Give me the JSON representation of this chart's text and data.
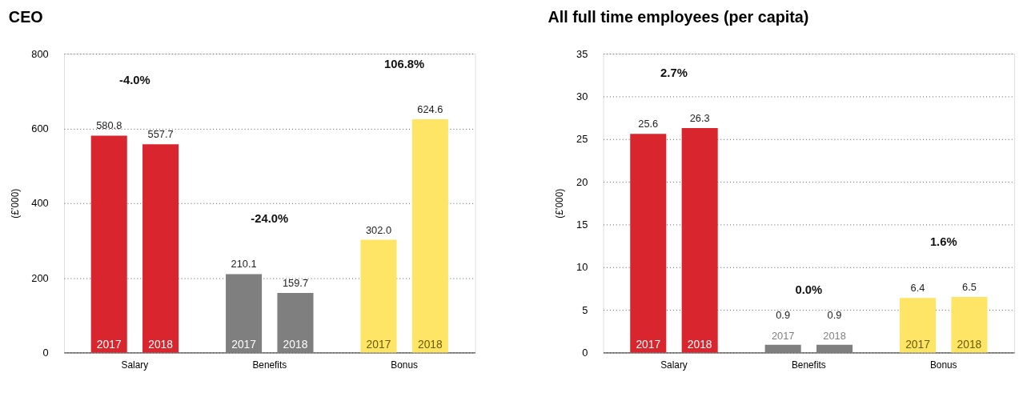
{
  "chart_data": [
    {
      "type": "bar",
      "title": "CEO",
      "ylabel": "(£’000)",
      "categories": [
        "Salary",
        "Benefits",
        "Bonus"
      ],
      "series": [
        {
          "name": "2017",
          "colors": [
            "#d9262e",
            "#7f7f7f",
            "#ffe566"
          ],
          "values": [
            580.8,
            210.1,
            302.0
          ],
          "value_labels": [
            "580.8",
            "210.1",
            "302.0"
          ]
        },
        {
          "name": "2018",
          "colors": [
            "#d9262e",
            "#7f7f7f",
            "#ffe566"
          ],
          "values": [
            557.7,
            159.7,
            624.6
          ],
          "value_labels": [
            "557.7",
            "159.7",
            "624.6"
          ]
        }
      ],
      "ylim": [
        0,
        800
      ],
      "yticks": [
        0,
        200,
        400,
        600,
        800
      ],
      "grid": "y",
      "legend": "bottom",
      "annotations": [
        "-4.0%",
        "-24.0%",
        "106.8%"
      ]
    },
    {
      "type": "bar",
      "title": "All full time employees (per capita)",
      "ylabel": "(£’000)",
      "categories": [
        "Salary",
        "Benefits",
        "Bonus"
      ],
      "series": [
        {
          "name": "2017",
          "colors": [
            "#d9262e",
            "#7f7f7f",
            "#ffe566"
          ],
          "values": [
            25.6,
            0.9,
            6.4
          ]
        },
        {
          "name": "2018",
          "colors": [
            "#d9262e",
            "#7f7f7f",
            "#ffe566"
          ],
          "values": [
            26.3,
            0.9,
            6.5
          ]
        }
      ],
      "ylim": [
        0,
        35
      ],
      "yticks": [
        0,
        5,
        10,
        15,
        20,
        25,
        30,
        35
      ],
      "grid": "y",
      "data_labels": true,
      "legend": "bottom",
      "annotations": [
        "2.7%",
        "0.0%",
        "1.6%"
      ]
    }
  ]
}
